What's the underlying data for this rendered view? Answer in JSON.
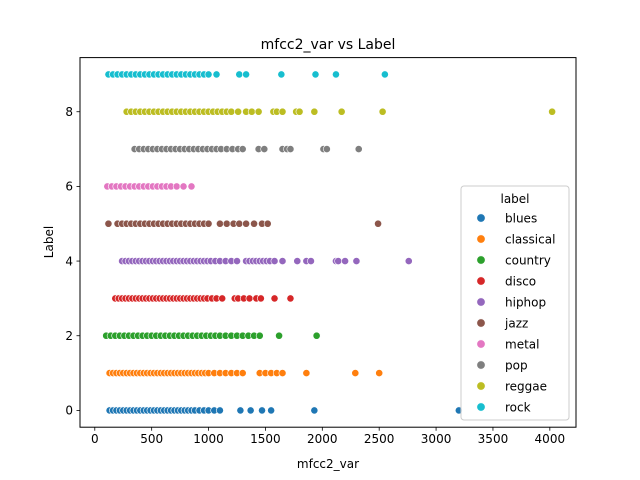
{
  "chart_data": {
    "type": "scatter",
    "title": "mfcc2_var vs Label",
    "xlabel": "mfcc2_var",
    "ylabel": "Label",
    "xlim": [
      -130,
      4230
    ],
    "ylim": [
      -0.45,
      9.45
    ],
    "xticks": [
      0,
      500,
      1000,
      1500,
      2000,
      2500,
      3000,
      3500,
      4000
    ],
    "yticks": [
      0,
      2,
      4,
      6,
      8
    ],
    "grid": false,
    "legend": {
      "title": "label",
      "placement": "center-right"
    },
    "series": [
      {
        "name": "blues",
        "color": "#1f77b4",
        "y": 0,
        "x": [
          130,
          160,
          190,
          220,
          250,
          280,
          310,
          340,
          370,
          400,
          430,
          460,
          490,
          520,
          550,
          580,
          610,
          640,
          670,
          700,
          730,
          760,
          790,
          820,
          850,
          880,
          920,
          960,
          1000,
          1050,
          1100,
          1280,
          1370,
          1470,
          1550,
          1930,
          3200
        ]
      },
      {
        "name": "classical",
        "color": "#ff7f0e",
        "y": 1,
        "x": [
          130,
          160,
          190,
          220,
          250,
          280,
          310,
          340,
          370,
          400,
          430,
          460,
          490,
          520,
          550,
          580,
          610,
          640,
          670,
          700,
          730,
          760,
          790,
          820,
          850,
          880,
          910,
          940,
          970,
          1000,
          1050,
          1100,
          1150,
          1200,
          1250,
          1300,
          1450,
          1500,
          1550,
          1600,
          1650,
          1860,
          2290,
          2500
        ]
      },
      {
        "name": "country",
        "color": "#2ca02c",
        "y": 2,
        "x": [
          100,
          140,
          180,
          220,
          260,
          300,
          340,
          380,
          420,
          460,
          500,
          540,
          580,
          620,
          660,
          700,
          740,
          780,
          820,
          860,
          900,
          940,
          980,
          1020,
          1060,
          1100,
          1150,
          1200,
          1250,
          1300,
          1350,
          1400,
          1450,
          1620,
          1950
        ]
      },
      {
        "name": "disco",
        "color": "#d62728",
        "y": 3,
        "x": [
          180,
          210,
          240,
          270,
          300,
          330,
          360,
          390,
          420,
          450,
          480,
          510,
          540,
          570,
          600,
          630,
          660,
          690,
          720,
          750,
          780,
          810,
          840,
          870,
          900,
          930,
          960,
          990,
          1030,
          1070,
          1120,
          1230,
          1260,
          1310,
          1360,
          1420,
          1460,
          1580,
          1720
        ]
      },
      {
        "name": "hiphop",
        "color": "#9467bd",
        "y": 4,
        "x": [
          240,
          270,
          300,
          330,
          360,
          390,
          420,
          450,
          480,
          510,
          540,
          570,
          600,
          630,
          660,
          690,
          720,
          750,
          780,
          810,
          840,
          870,
          900,
          930,
          960,
          990,
          1020,
          1060,
          1100,
          1150,
          1200,
          1250,
          1330,
          1360,
          1390,
          1420,
          1450,
          1480,
          1510,
          1540,
          1580,
          1650,
          1780,
          1860,
          1900,
          2120,
          2140,
          2200,
          2300,
          2760
        ]
      },
      {
        "name": "jazz",
        "color": "#8c564b",
        "y": 5,
        "x": [
          120,
          200,
          240,
          280,
          320,
          360,
          400,
          440,
          480,
          520,
          560,
          600,
          640,
          680,
          720,
          760,
          800,
          840,
          880,
          920,
          960,
          1000,
          1100,
          1160,
          1220,
          1270,
          1330,
          1400,
          1470,
          1520,
          2490
        ]
      },
      {
        "name": "metal",
        "color": "#e377c2",
        "y": 6,
        "x": [
          110,
          150,
          190,
          230,
          270,
          310,
          350,
          390,
          430,
          470,
          510,
          550,
          590,
          630,
          670,
          720,
          780,
          850
        ]
      },
      {
        "name": "pop",
        "color": "#7f7f7f",
        "y": 7,
        "x": [
          350,
          390,
          430,
          470,
          510,
          550,
          590,
          630,
          670,
          710,
          750,
          790,
          830,
          870,
          910,
          950,
          990,
          1030,
          1070,
          1110,
          1160,
          1210,
          1260,
          1300,
          1440,
          1490,
          1650,
          1690,
          1720,
          2010,
          2040,
          2320
        ]
      },
      {
        "name": "reggae",
        "color": "#bcbd22",
        "y": 8,
        "x": [
          280,
          320,
          360,
          400,
          440,
          480,
          520,
          560,
          600,
          640,
          680,
          720,
          760,
          800,
          840,
          880,
          920,
          960,
          1000,
          1040,
          1080,
          1120,
          1160,
          1200,
          1260,
          1330,
          1380,
          1440,
          1570,
          1600,
          1650,
          1770,
          1800,
          1930,
          2170,
          2530,
          4020
        ]
      },
      {
        "name": "rock",
        "color": "#17becf",
        "y": 9,
        "x": [
          120,
          160,
          200,
          240,
          280,
          320,
          360,
          400,
          440,
          480,
          520,
          560,
          600,
          640,
          680,
          720,
          760,
          800,
          840,
          880,
          920,
          960,
          1000,
          1070,
          1270,
          1330,
          1640,
          1940,
          2120,
          2550
        ]
      }
    ]
  }
}
